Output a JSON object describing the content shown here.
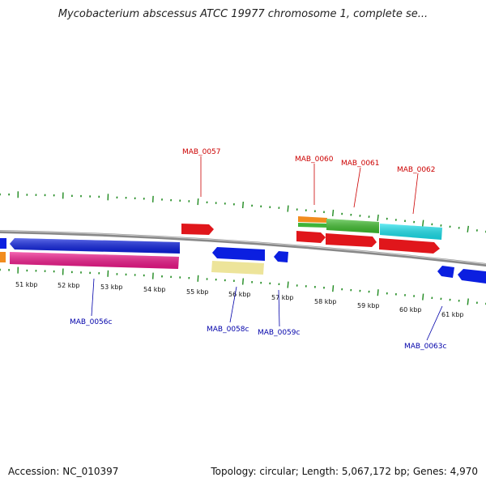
{
  "title": "Mycobacterium abscessus ATCC 19977 chromosome 1, complete se...",
  "footer": {
    "accession": "Accession: NC_010397",
    "summary": "Topology: circular; Length: 5,067,172 bp; Genes: 4,970"
  },
  "colors": {
    "backbone": "#8c8c8c",
    "tick": "#1f8a1f",
    "forward_label": "#cc0000",
    "reverse_label": "#0000aa"
  },
  "kbp_labels": [
    "51 kbp",
    "52 kbp",
    "53 kbp",
    "54 kbp",
    "55 kbp",
    "56 kbp",
    "57 kbp",
    "58 kbp",
    "59 kbp",
    "60 kbp",
    "61 kbp"
  ],
  "forward_labels": [
    "MAB_0057",
    "MAB_0060",
    "MAB_0061",
    "MAB_0062"
  ],
  "reverse_labels": [
    "MAB_0056c",
    "MAB_0058c",
    "MAB_0059c",
    "MAB_0063c"
  ]
}
